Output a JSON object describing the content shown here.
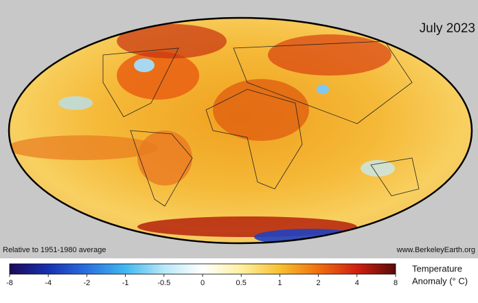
{
  "title": "July 2023",
  "note_left": "Relative to 1951-1980 average",
  "note_right": "www.BerkeleyEarth.org",
  "colorbar": {
    "ticks": [
      -8,
      -4,
      -2,
      -1,
      -0.5,
      0,
      0.5,
      1,
      2,
      4,
      8
    ],
    "label": [
      "Temperature",
      "Anomaly (° C)"
    ]
  }
}
